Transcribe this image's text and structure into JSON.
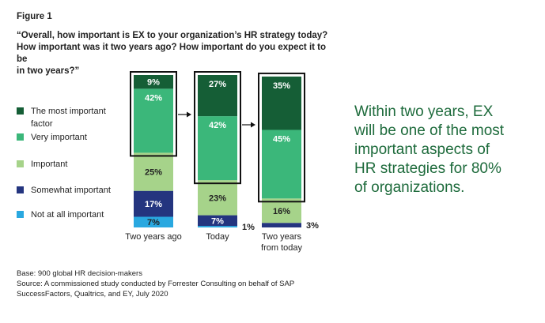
{
  "figure_label": "Figure 1",
  "question_lines": [
    "“Overall, how important is EX to your organization’s HR strategy today?",
    "How important was it two years ago? How important do you expect it to be",
    "in two years?”"
  ],
  "legend": [
    {
      "label_lines": [
        "The most important",
        "factor"
      ],
      "color": "#155e36"
    },
    {
      "label_lines": [
        "Very important"
      ],
      "color": "#3bb77a"
    },
    {
      "label_lines": [
        "Important"
      ],
      "color": "#a6d38a"
    },
    {
      "label_lines": [
        "Somewhat important"
      ],
      "color": "#24357f"
    },
    {
      "label_lines": [
        "Not at all important"
      ],
      "color": "#29a8e0"
    }
  ],
  "callout_lines": [
    "Within two years, EX",
    "will be one of the most",
    "important aspects of",
    "HR strategies for 80%",
    "of organizations."
  ],
  "footer_lines": [
    "Base: 900 global HR decision-makers",
    "Source: A commissioned study conducted by Forrester Consulting on behalf of SAP",
    "SuccessFactors, Qualtrics, and EY, July 2020"
  ],
  "chart_data": {
    "type": "bar",
    "stacked": true,
    "orientation": "vertical",
    "categories": [
      [
        "Two years ago"
      ],
      [
        "Today"
      ],
      [
        "Two years",
        "from today"
      ]
    ],
    "series": [
      {
        "name": "The most important factor",
        "values": [
          9,
          27,
          35
        ],
        "labels": [
          "9%",
          "27%",
          "35%"
        ],
        "color": "#155e36"
      },
      {
        "name": "Very important",
        "values": [
          42,
          42,
          45
        ],
        "labels": [
          "42%",
          "42%",
          "45%"
        ],
        "color": "#3bb77a"
      },
      {
        "name": "Important",
        "values": [
          25,
          23,
          16
        ],
        "labels": [
          "25%",
          "23%",
          "16%"
        ],
        "color": "#a6d38a"
      },
      {
        "name": "Somewhat important",
        "values": [
          17,
          7,
          3
        ],
        "labels": [
          "17%",
          "7%",
          "3%"
        ],
        "color": "#24357f"
      },
      {
        "name": "Not at all important",
        "values": [
          7,
          1,
          0
        ],
        "labels": [
          "7%",
          "1%",
          ""
        ],
        "color": "#29a8e0"
      }
    ],
    "highlight": "top two series outlined in a black box for each bar",
    "arrows_between_bars": true
  }
}
